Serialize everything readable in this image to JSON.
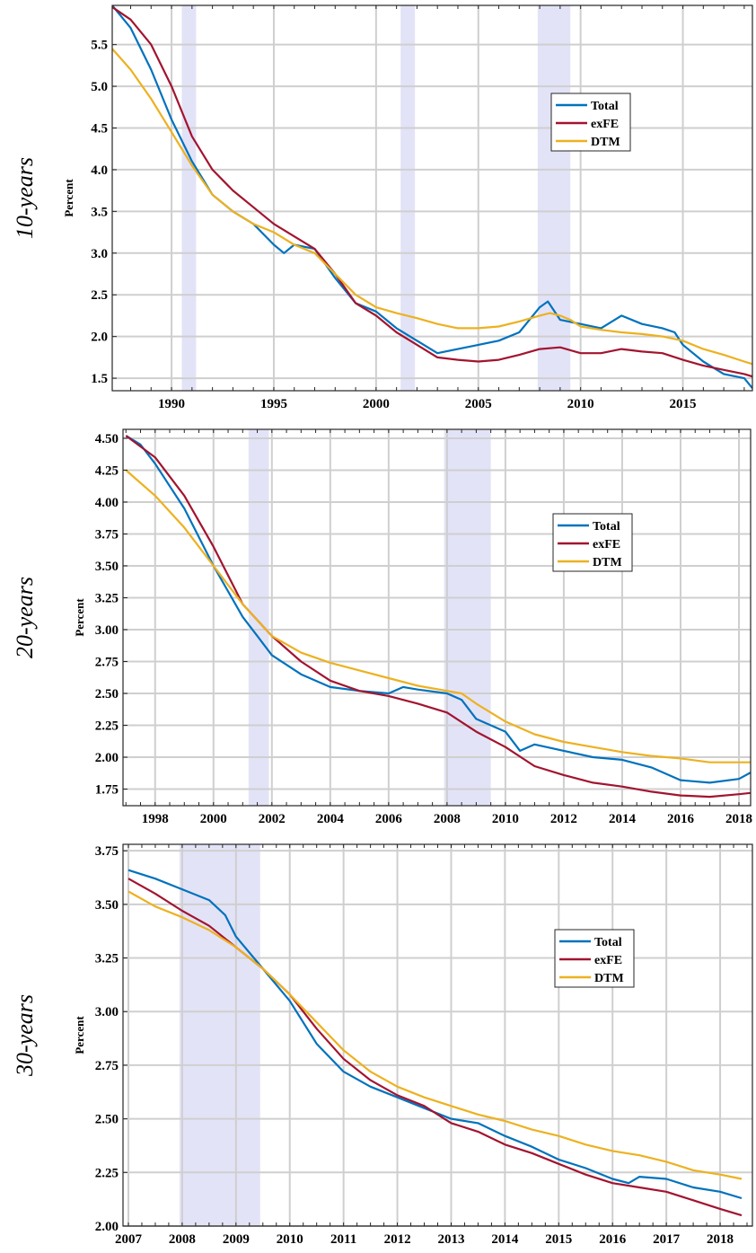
{
  "chart_data": [
    {
      "type": "line",
      "panel_label": "10-years",
      "ylabel": "Percent",
      "xlim": [
        1987.1,
        2018.4
      ],
      "ylim": [
        1.35,
        5.97
      ],
      "xticks": [
        1990,
        1995,
        2000,
        2005,
        2010,
        2015
      ],
      "yticks": [
        1.5,
        2.0,
        2.5,
        3.0,
        3.5,
        4.0,
        4.5,
        5.0,
        5.5
      ],
      "ytick_labels": [
        "1.5",
        "2.0",
        "2.5",
        "3.0",
        "3.5",
        "4.0",
        "4.5",
        "5.0",
        "5.5"
      ],
      "grid": true,
      "legend_position": "upper-right",
      "recessions": [
        [
          1990.5,
          1991.2
        ],
        [
          2001.2,
          2001.9
        ],
        [
          2007.9,
          2009.5
        ]
      ],
      "series": [
        {
          "name": "Total",
          "color": "#0072BD",
          "x": [
            1987.1,
            1988,
            1989,
            1990,
            1991,
            1992,
            1993,
            1994,
            1995,
            1995.5,
            1996,
            1997,
            1998,
            1999,
            2000,
            2001,
            2002,
            2003,
            2004,
            2005,
            2006,
            2007,
            2007.5,
            2008,
            2008.4,
            2009,
            2010,
            2011,
            2012,
            2013,
            2014,
            2014.6,
            2015,
            2016,
            2017,
            2018,
            2018.4
          ],
          "values": [
            5.97,
            5.7,
            5.2,
            4.6,
            4.1,
            3.7,
            3.5,
            3.35,
            3.1,
            3.0,
            3.1,
            3.05,
            2.7,
            2.4,
            2.3,
            2.1,
            1.95,
            1.8,
            1.85,
            1.9,
            1.95,
            2.05,
            2.2,
            2.35,
            2.42,
            2.2,
            2.15,
            2.1,
            2.25,
            2.15,
            2.1,
            2.05,
            1.9,
            1.7,
            1.55,
            1.5,
            1.38
          ]
        },
        {
          "name": "exFE",
          "color": "#A2142F",
          "x": [
            1987.1,
            1988,
            1989,
            1990,
            1991,
            1992,
            1993,
            1994,
            1995,
            1996,
            1997,
            1998,
            1999,
            2000,
            2001,
            2002,
            2003,
            2004,
            2005,
            2006,
            2007,
            2008,
            2009,
            2010,
            2011,
            2012,
            2013,
            2014,
            2015,
            2016,
            2017,
            2018,
            2018.4
          ],
          "values": [
            5.95,
            5.8,
            5.5,
            5.0,
            4.4,
            4.0,
            3.75,
            3.55,
            3.35,
            3.2,
            3.05,
            2.75,
            2.4,
            2.25,
            2.05,
            1.9,
            1.75,
            1.72,
            1.7,
            1.72,
            1.78,
            1.85,
            1.87,
            1.8,
            1.8,
            1.85,
            1.82,
            1.8,
            1.72,
            1.65,
            1.6,
            1.55,
            1.52
          ]
        },
        {
          "name": "DTM",
          "color": "#EDB120",
          "x": [
            1987.1,
            1988,
            1989,
            1990,
            1991,
            1992,
            1993,
            1994,
            1995,
            1996,
            1997,
            1998,
            1999,
            2000,
            2001,
            2002,
            2003,
            2004,
            2005,
            2006,
            2007,
            2008,
            2008.5,
            2009,
            2009.5,
            2010,
            2011,
            2012,
            2013,
            2014,
            2015,
            2016,
            2017,
            2018,
            2018.4
          ],
          "values": [
            5.45,
            5.2,
            4.85,
            4.45,
            4.05,
            3.7,
            3.5,
            3.35,
            3.25,
            3.1,
            3.0,
            2.75,
            2.5,
            2.35,
            2.28,
            2.22,
            2.15,
            2.1,
            2.1,
            2.12,
            2.18,
            2.25,
            2.28,
            2.25,
            2.2,
            2.12,
            2.08,
            2.05,
            2.03,
            2.0,
            1.95,
            1.85,
            1.78,
            1.7,
            1.67
          ]
        }
      ]
    },
    {
      "type": "line",
      "panel_label": "20-years",
      "ylabel": "Percent",
      "xlim": [
        1996.9,
        2018.4
      ],
      "ylim": [
        1.62,
        4.57
      ],
      "xticks": [
        1998,
        2000,
        2002,
        2004,
        2006,
        2008,
        2010,
        2012,
        2014,
        2016,
        2018
      ],
      "yticks": [
        1.75,
        2.0,
        2.25,
        2.5,
        2.75,
        3.0,
        3.25,
        3.5,
        3.75,
        4.0,
        4.25,
        4.5
      ],
      "ytick_labels": [
        "1.75",
        "2.00",
        "2.25",
        "2.50",
        "2.75",
        "3.00",
        "3.25",
        "3.50",
        "3.75",
        "4.00",
        "4.25",
        "4.50"
      ],
      "grid": true,
      "legend_position": "upper-right",
      "recessions": [
        [
          2001.2,
          2001.9
        ],
        [
          2007.9,
          2009.5
        ]
      ],
      "series": [
        {
          "name": "Total",
          "color": "#0072BD",
          "x": [
            1997,
            1997.5,
            1998,
            1999,
            2000,
            2001,
            2001.5,
            2002,
            2003,
            2004,
            2005,
            2006,
            2006.5,
            2007,
            2008,
            2008.5,
            2009,
            2009.5,
            2010,
            2010.5,
            2011,
            2012,
            2013,
            2014,
            2015,
            2016,
            2017,
            2018,
            2018.4
          ],
          "values": [
            4.52,
            4.45,
            4.3,
            3.95,
            3.5,
            3.1,
            2.95,
            2.8,
            2.65,
            2.55,
            2.52,
            2.5,
            2.55,
            2.53,
            2.5,
            2.45,
            2.3,
            2.25,
            2.2,
            2.05,
            2.1,
            2.05,
            2.0,
            1.98,
            1.92,
            1.82,
            1.8,
            1.83,
            1.88
          ]
        },
        {
          "name": "exFE",
          "color": "#A2142F",
          "x": [
            1997,
            1998,
            1999,
            2000,
            2001,
            2002,
            2003,
            2004,
            2005,
            2006,
            2007,
            2008,
            2009,
            2010,
            2011,
            2012,
            2013,
            2014,
            2015,
            2016,
            2017,
            2018,
            2018.4
          ],
          "values": [
            4.52,
            4.35,
            4.05,
            3.65,
            3.2,
            2.95,
            2.75,
            2.6,
            2.52,
            2.48,
            2.42,
            2.35,
            2.2,
            2.08,
            1.93,
            1.86,
            1.8,
            1.77,
            1.73,
            1.7,
            1.69,
            1.71,
            1.72
          ]
        },
        {
          "name": "DTM",
          "color": "#EDB120",
          "x": [
            1997,
            1998,
            1999,
            2000,
            2001,
            2002,
            2003,
            2004,
            2005,
            2006,
            2007,
            2008,
            2008.5,
            2009,
            2010,
            2011,
            2012,
            2013,
            2014,
            2015,
            2016,
            2017,
            2018,
            2018.4
          ],
          "values": [
            4.25,
            4.05,
            3.8,
            3.5,
            3.2,
            2.95,
            2.82,
            2.74,
            2.68,
            2.62,
            2.56,
            2.52,
            2.5,
            2.42,
            2.28,
            2.18,
            2.12,
            2.08,
            2.04,
            2.01,
            1.99,
            1.96,
            1.96,
            1.96
          ]
        }
      ]
    },
    {
      "type": "line",
      "panel_label": "30-years",
      "ylabel": "Percent",
      "xlim": [
        2006.9,
        2018.6
      ],
      "ylim": [
        2.0,
        3.78
      ],
      "xticks": [
        2007,
        2008,
        2009,
        2010,
        2011,
        2012,
        2013,
        2014,
        2015,
        2016,
        2017,
        2018
      ],
      "yticks": [
        2.0,
        2.25,
        2.5,
        2.75,
        3.0,
        3.25,
        3.5,
        3.75
      ],
      "ytick_labels": [
        "2.00",
        "2.25",
        "2.50",
        "2.75",
        "3.00",
        "3.25",
        "3.50",
        "3.75"
      ],
      "grid": true,
      "legend_position": "upper-right",
      "recessions": [
        [
          2007.95,
          2009.45
        ]
      ],
      "series": [
        {
          "name": "Total",
          "color": "#0072BD",
          "x": [
            2007.0,
            2007.5,
            2008,
            2008.5,
            2008.8,
            2009,
            2009.5,
            2010,
            2010.5,
            2011,
            2011.5,
            2012,
            2012.5,
            2013,
            2013.5,
            2014,
            2014.5,
            2015,
            2015.5,
            2016,
            2016.3,
            2016.5,
            2017,
            2017.5,
            2018,
            2018.4
          ],
          "values": [
            3.66,
            3.62,
            3.57,
            3.52,
            3.45,
            3.35,
            3.2,
            3.05,
            2.85,
            2.72,
            2.65,
            2.6,
            2.55,
            2.5,
            2.48,
            2.42,
            2.37,
            2.31,
            2.27,
            2.22,
            2.2,
            2.23,
            2.22,
            2.18,
            2.16,
            2.13
          ]
        },
        {
          "name": "exFE",
          "color": "#A2142F",
          "x": [
            2007.0,
            2007.5,
            2008,
            2008.5,
            2009,
            2009.5,
            2010,
            2010.5,
            2011,
            2011.5,
            2012,
            2012.5,
            2013,
            2013.5,
            2014,
            2014.5,
            2015,
            2015.5,
            2016,
            2016.5,
            2017,
            2017.5,
            2018,
            2018.4
          ],
          "values": [
            3.62,
            3.55,
            3.47,
            3.4,
            3.3,
            3.2,
            3.08,
            2.92,
            2.78,
            2.68,
            2.61,
            2.56,
            2.48,
            2.44,
            2.38,
            2.34,
            2.29,
            2.24,
            2.2,
            2.18,
            2.16,
            2.12,
            2.08,
            2.05
          ]
        },
        {
          "name": "DTM",
          "color": "#EDB120",
          "x": [
            2007.0,
            2007.5,
            2008,
            2008.5,
            2009,
            2009.5,
            2010,
            2010.5,
            2011,
            2011.5,
            2012,
            2012.5,
            2013,
            2013.5,
            2014,
            2014.5,
            2015,
            2015.5,
            2016,
            2016.5,
            2017,
            2017.5,
            2018,
            2018.4
          ],
          "values": [
            3.56,
            3.49,
            3.44,
            3.38,
            3.3,
            3.2,
            3.08,
            2.95,
            2.82,
            2.72,
            2.65,
            2.6,
            2.56,
            2.52,
            2.49,
            2.45,
            2.42,
            2.38,
            2.35,
            2.33,
            2.3,
            2.26,
            2.24,
            2.22
          ]
        }
      ]
    }
  ]
}
